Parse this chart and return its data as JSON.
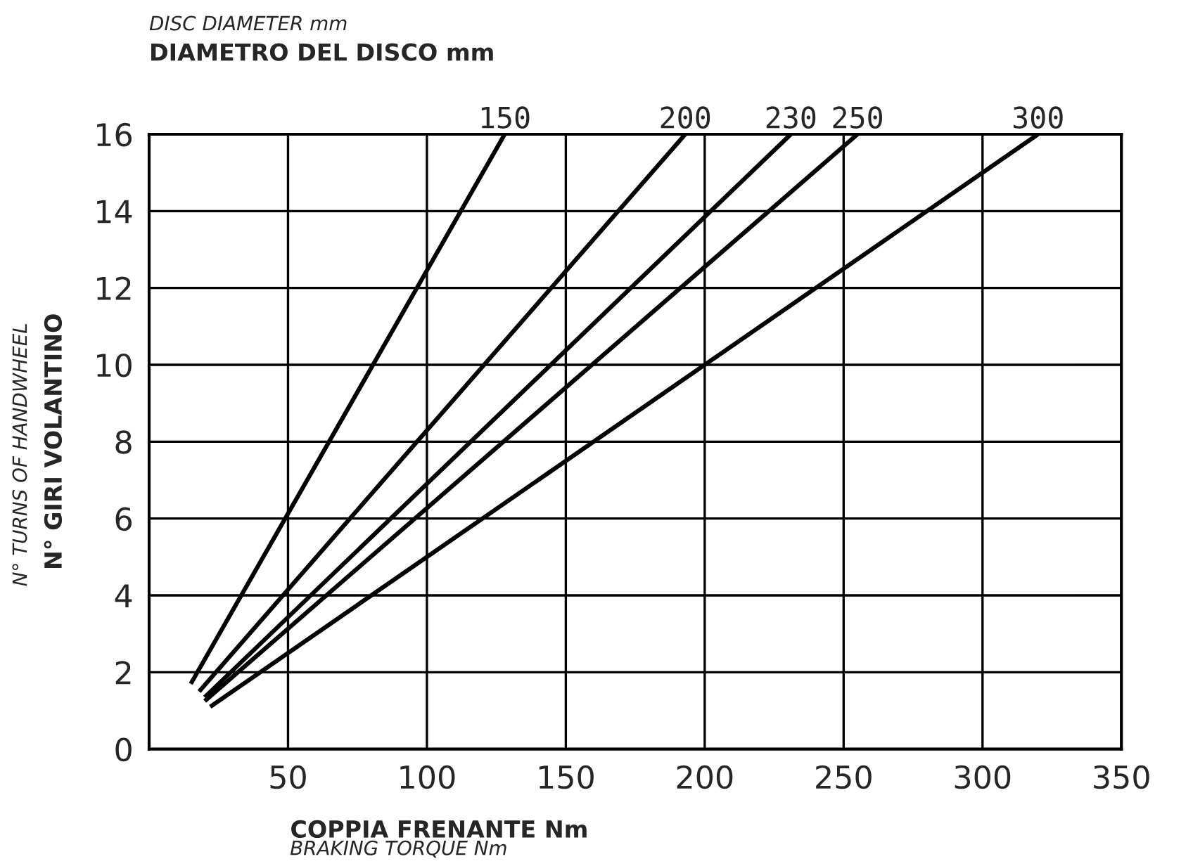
{
  "chart_data": {
    "type": "line",
    "title": "DIAMETRO DEL DISCO mm",
    "subtitle": "DISC DIAMETER mm",
    "xlabel": "COPPIA FRENANTE Nm",
    "ylabel": "N° GIRI VOLANTINO",
    "annotations": [
      "BRAKING TORQUE Nm",
      "N° TURNS OF HANDWHEEL"
    ],
    "series": [
      {
        "name": "150",
        "color": "#000000",
        "x": [
          15,
          128
        ],
        "values": [
          1.7,
          16
        ]
      },
      {
        "name": "200",
        "color": "#000000",
        "x": [
          18,
          193
        ],
        "values": [
          1.5,
          16
        ]
      },
      {
        "name": "230",
        "color": "#000000",
        "x": [
          20,
          231
        ],
        "values": [
          1.35,
          16
        ]
      },
      {
        "name": "250",
        "color": "#000000",
        "x": [
          20,
          255
        ],
        "values": [
          1.25,
          16
        ]
      },
      {
        "name": "300",
        "color": "#000000",
        "x": [
          22,
          320
        ],
        "values": [
          1.1,
          16
        ]
      }
    ],
    "xlim": [
      0,
      350
    ],
    "xticks": [
      50,
      100,
      150,
      200,
      250,
      300,
      350
    ],
    "ylim": [
      0,
      16
    ],
    "yticks": [
      0,
      2,
      4,
      6,
      8,
      10,
      12,
      14,
      16
    ],
    "grid": true,
    "marker": "none",
    "line_style": "solid"
  }
}
